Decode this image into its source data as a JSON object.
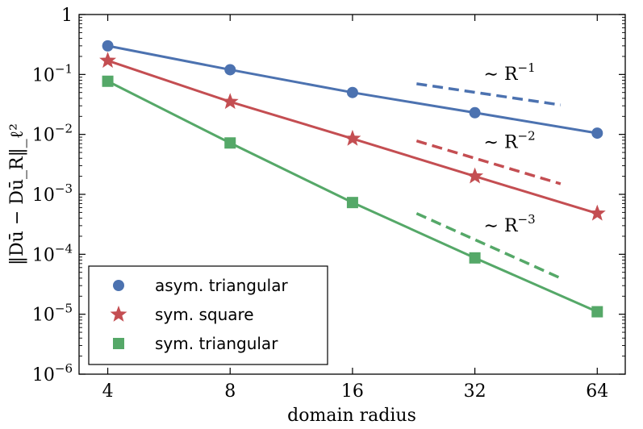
{
  "chart_data": {
    "type": "line",
    "xlabel": "domain radius",
    "ylabel": "‖Dū − Dū_R‖_ℓ²",
    "x_scale": "log2",
    "y_scale": "log10",
    "xlim": [
      3.4,
      75
    ],
    "ylim": [
      1e-06,
      1
    ],
    "x_ticks": [
      4,
      8,
      16,
      32,
      64
    ],
    "x_tick_labels": [
      "4",
      "8",
      "16",
      "32",
      "64"
    ],
    "y_ticks": [
      {
        "value": 1,
        "base": "1",
        "exp": ""
      },
      {
        "value": 0.1,
        "base": "10",
        "exp": "−1"
      },
      {
        "value": 0.01,
        "base": "10",
        "exp": "−2"
      },
      {
        "value": 0.001,
        "base": "10",
        "exp": "−3"
      },
      {
        "value": 0.0001,
        "base": "10",
        "exp": "−4"
      },
      {
        "value": 1e-05,
        "base": "10",
        "exp": "−5"
      },
      {
        "value": 1e-06,
        "base": "10",
        "exp": "−6"
      }
    ],
    "grid": false,
    "legend_position": "bottom-left",
    "series": [
      {
        "name": "asym. triangular",
        "marker": "circle",
        "color": "#4c72b0",
        "x": [
          4,
          8,
          16,
          32,
          64
        ],
        "y": [
          0.3,
          0.12,
          0.05,
          0.023,
          0.0105
        ]
      },
      {
        "name": "sym. square",
        "marker": "star",
        "color": "#c44e52",
        "x": [
          4,
          8,
          16,
          32,
          64
        ],
        "y": [
          0.17,
          0.035,
          0.0085,
          0.002,
          0.00048
        ]
      },
      {
        "name": "sym. triangular",
        "marker": "square",
        "color": "#55a868",
        "x": [
          4,
          8,
          16,
          32,
          64
        ],
        "y": [
          0.077,
          0.0072,
          0.00073,
          8.7e-05,
          1.1e-05
        ]
      }
    ],
    "reference_lines": [
      {
        "label_base": "∼ R",
        "label_exp": "−1",
        "color": "#4c72b0",
        "x": [
          23,
          52
        ],
        "y": [
          0.07,
          0.031
        ]
      },
      {
        "label_base": "∼ R",
        "label_exp": "−2",
        "color": "#c44e52",
        "x": [
          23,
          52
        ],
        "y": [
          0.0078,
          0.0015
        ]
      },
      {
        "label_base": "∼ R",
        "label_exp": "−3",
        "color": "#55a868",
        "x": [
          23,
          52
        ],
        "y": [
          0.00048,
          4e-05
        ]
      }
    ]
  }
}
